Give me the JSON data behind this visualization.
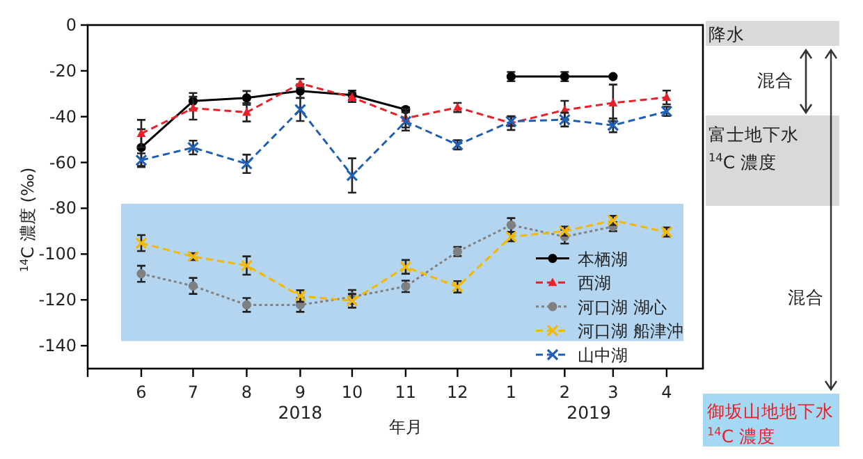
{
  "chart_data": {
    "type": "line",
    "xlabel": "年月",
    "ylabel": "$^{14}$C 濃度 (‰)",
    "x": [
      "2018-06",
      "2018-07",
      "2018-08",
      "2018-09",
      "2018-10",
      "2018-11",
      "2018-12",
      "2019-01",
      "2019-02",
      "2019-03",
      "2019-04"
    ],
    "xlim": [
      "2018-05",
      "2019-04-22"
    ],
    "xticks": [
      {
        "value": "2018-05",
        "label": null
      },
      {
        "value": "2018-06",
        "label": "6"
      },
      {
        "value": "2018-07",
        "label": "7"
      },
      {
        "value": "2018-08",
        "label": "8"
      },
      {
        "value": "2018-09",
        "label": "9"
      },
      {
        "value": "2018-10",
        "label": "10"
      },
      {
        "value": "2018-11",
        "label": "11"
      },
      {
        "value": "2018-12",
        "label": "12"
      },
      {
        "value": "2019-01",
        "label": "1"
      },
      {
        "value": "2019-02",
        "label": "2"
      },
      {
        "value": "2019-03",
        "label": "3"
      },
      {
        "value": "2019-04",
        "label": "4"
      }
    ],
    "ylim": [
      -150,
      0
    ],
    "yticks": [
      0,
      -20,
      -40,
      -60,
      -80,
      -100,
      -120,
      -140
    ],
    "grid": false,
    "legend": "bottom right",
    "bands": [
      {
        "axis": "y",
        "from": -78,
        "to": -138,
        "color": "#b3d5f0"
      }
    ],
    "series": [
      {
        "name": "本栖湖",
        "color": "#000000",
        "marker": "circle",
        "line_style": "solid",
        "values": [
          -53.5,
          -33.2,
          -31.8,
          -28.8,
          -30.6,
          -36.9,
          null,
          -22.5,
          -22.5,
          -22.5,
          null
        ],
        "errors": [
          8,
          3.5,
          3,
          3,
          2,
          1,
          null,
          2,
          2,
          null,
          null
        ]
      },
      {
        "name": "西湖",
        "color": "#e8202a",
        "marker": "triangle",
        "line_style": "dashed",
        "values": [
          -47.4,
          -36.3,
          -38.1,
          -25.5,
          -31.6,
          -40.7,
          -36,
          -42.8,
          -37.1,
          -34,
          -31.6
        ],
        "errors": [
          6,
          5,
          4,
          2,
          2,
          4,
          2,
          3,
          4,
          8,
          3
        ]
      },
      {
        "name": "河口湖 湖心",
        "color": "#808080",
        "marker": "circle",
        "line_style": "dotted",
        "values": [
          -108.6,
          -113.9,
          -122.2,
          -122.2,
          -118.7,
          -114.1,
          -98.9,
          -87.3,
          -92.4,
          -88,
          null
        ],
        "errors": [
          3.5,
          3.5,
          3,
          3,
          3,
          2.5,
          2,
          3,
          3,
          2,
          null
        ]
      },
      {
        "name": "河口湖 船津沖",
        "color": "#f5b800",
        "marker": "cross",
        "line_style": "dashed",
        "values": [
          -95.2,
          -101.1,
          -105,
          -118.3,
          -120.4,
          -105.6,
          -114.3,
          -92.4,
          -90,
          -85.3,
          -90.4
        ],
        "errors": [
          3.5,
          1.5,
          4,
          2.5,
          3,
          3,
          2.5,
          2,
          2,
          2,
          2
        ]
      },
      {
        "name": "山中湖",
        "color": "#1f5fb4",
        "marker": "cross",
        "line_style": "dashed",
        "values": [
          -59,
          -53.5,
          -60.6,
          -36.9,
          -65.7,
          -42.1,
          -52.3,
          -42.1,
          -41.3,
          -43.8,
          -37.7
        ],
        "errors": [
          3,
          3,
          4,
          5,
          7.5,
          4,
          2,
          2,
          3,
          3,
          2
        ]
      }
    ],
    "annotations": [
      "2018",
      "2019",
      "降水",
      "混合",
      "富士地下水",
      "$^{14}$C 濃度",
      "混合",
      "御坂山地地下水",
      "$^{14}$C 濃度"
    ]
  }
}
